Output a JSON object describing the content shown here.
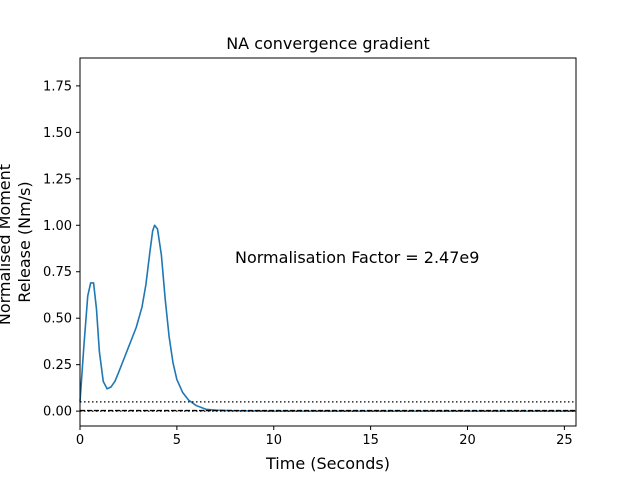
{
  "chart_data": {
    "type": "line",
    "title": "NA convergence gradient",
    "xlabel": "Time (Seconds)",
    "ylabel_lines": [
      "Normalised Moment",
      "Release (Nm/s)"
    ],
    "xlim": [
      0,
      25.6
    ],
    "ylim": [
      -0.08,
      1.9
    ],
    "x_ticks": [
      0,
      5,
      10,
      15,
      20,
      25
    ],
    "y_ticks": [
      0.0,
      0.25,
      0.5,
      0.75,
      1.0,
      1.25,
      1.5,
      1.75
    ],
    "x_tick_labels": [
      "0",
      "5",
      "10",
      "15",
      "20",
      "25"
    ],
    "y_tick_labels": [
      "0.00",
      "0.25",
      "0.50",
      "0.75",
      "1.00",
      "1.25",
      "1.50",
      "1.75"
    ],
    "grid": false,
    "annotation": "Normalisation Factor = 2.47e9",
    "series": [
      {
        "color": "#1f77b4",
        "style": "solid",
        "x": [
          0.0,
          0.2,
          0.4,
          0.55,
          0.7,
          0.85,
          1.0,
          1.2,
          1.4,
          1.6,
          1.8,
          2.0,
          2.3,
          2.6,
          2.9,
          3.2,
          3.4,
          3.6,
          3.75,
          3.85,
          4.0,
          4.2,
          4.4,
          4.6,
          4.8,
          5.0,
          5.3,
          5.6,
          6.0,
          6.5,
          7.0,
          8.0,
          10.0,
          15.0,
          20.0,
          25.6
        ],
        "y": [
          0.05,
          0.35,
          0.62,
          0.69,
          0.69,
          0.55,
          0.32,
          0.16,
          0.12,
          0.13,
          0.16,
          0.21,
          0.29,
          0.37,
          0.45,
          0.56,
          0.68,
          0.85,
          0.97,
          1.0,
          0.98,
          0.84,
          0.6,
          0.4,
          0.26,
          0.17,
          0.1,
          0.06,
          0.03,
          0.01,
          0.005,
          0.002,
          0.0,
          0.0,
          0.0,
          0.0
        ]
      },
      {
        "color": "#000000",
        "style": "dotted",
        "x": [
          0,
          25.6
        ],
        "y": [
          0.05,
          0.05
        ]
      },
      {
        "color": "#000000",
        "style": "dotted",
        "x": [
          0,
          25.6
        ],
        "y": [
          0.0,
          0.0
        ]
      },
      {
        "color": "#000000",
        "style": "dashed",
        "x": [
          0,
          25.6
        ],
        "y": [
          0.003,
          0.003
        ]
      }
    ]
  }
}
